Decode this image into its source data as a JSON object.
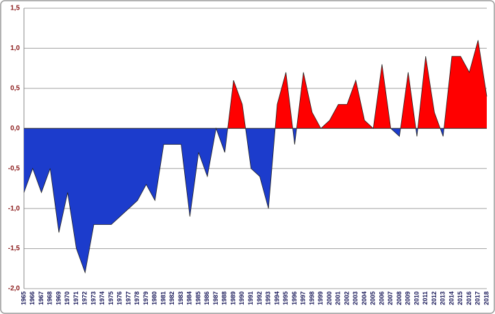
{
  "chart_data": {
    "type": "area",
    "x": [
      1965,
      1966,
      1967,
      1968,
      1969,
      1970,
      1971,
      1972,
      1973,
      1974,
      1975,
      1976,
      1977,
      1978,
      1979,
      1980,
      1981,
      1982,
      1983,
      1984,
      1985,
      1986,
      1987,
      1988,
      1989,
      1990,
      1991,
      1992,
      1993,
      1994,
      1995,
      1996,
      1997,
      1998,
      1999,
      2000,
      2001,
      2002,
      2003,
      2004,
      2005,
      2006,
      2007,
      2008,
      2009,
      2010,
      2011,
      2012,
      2013,
      2014,
      2015,
      2016,
      2017,
      2018
    ],
    "values": [
      -0.8,
      -0.5,
      -0.8,
      -0.5,
      -1.3,
      -0.8,
      -1.5,
      -1.8,
      -1.2,
      -1.2,
      -1.2,
      -1.1,
      -1.0,
      -0.9,
      -0.7,
      -0.9,
      -0.2,
      -0.2,
      -0.2,
      -1.1,
      -0.3,
      -0.6,
      0.0,
      -0.3,
      0.6,
      0.3,
      -0.5,
      -0.6,
      -1.0,
      0.3,
      0.7,
      -0.2,
      0.7,
      0.2,
      0.0,
      0.1,
      0.3,
      0.3,
      0.6,
      0.1,
      0.0,
      0.8,
      0.0,
      -0.1,
      0.7,
      -0.1,
      0.9,
      0.2,
      -0.1,
      0.9,
      0.9,
      0.7,
      1.1,
      0.4
    ],
    "xlim": [
      1965,
      2018
    ],
    "ylim": [
      -2.0,
      1.5
    ],
    "yticks": [
      {
        "value": -2.0,
        "label": "-2,0"
      },
      {
        "value": -1.5,
        "label": "-1,5"
      },
      {
        "value": -1.0,
        "label": "-1,0"
      },
      {
        "value": -0.5,
        "label": "-0,5"
      },
      {
        "value": 0.0,
        "label": "0,0"
      },
      {
        "value": 0.5,
        "label": "0,5"
      },
      {
        "value": 1.0,
        "label": "1,0"
      },
      {
        "value": 1.5,
        "label": "1,5"
      }
    ],
    "grid": true,
    "positive_color": "#ff0000",
    "negative_color": "#1c3ccc"
  }
}
